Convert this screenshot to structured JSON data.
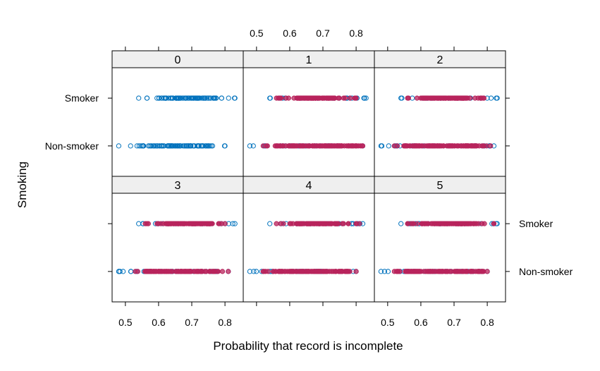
{
  "chart_data": {
    "type": "scatter",
    "xlabel": "Probability that record is incomplete",
    "ylabel": "Smoking",
    "xlim": [
      0.46,
      0.855
    ],
    "x_ticks": [
      0.5,
      0.6,
      0.7,
      0.8
    ],
    "x_tick_labels": [
      "0.5",
      "0.6",
      "0.7",
      "0.8"
    ],
    "y_categories": [
      "Non-smoker",
      "Smoker"
    ],
    "colors": {
      "open": "#0072bd",
      "filled": "#b8245c",
      "strip": "#efefef"
    },
    "legend": null,
    "panels": [
      {
        "label": "0",
        "ranges": {
          "Smoker": {
            "open": [
              0.54,
              0.83
            ],
            "open_dense": [
              0.6,
              0.77
            ],
            "filled": null
          },
          "Non-smoker": {
            "open": [
              0.48,
              0.8
            ],
            "open_dense": [
              0.55,
              0.76
            ],
            "filled": null
          }
        }
      },
      {
        "label": "1",
        "ranges": {
          "Smoker": {
            "open": [
              0.54,
              0.83
            ],
            "filled": [
              0.56,
              0.8
            ],
            "filled_dense": [
              0.62,
              0.74
            ]
          },
          "Non-smoker": {
            "open": [
              0.48,
              0.82
            ],
            "filled": [
              0.52,
              0.82
            ],
            "filled_dense": [
              0.55,
              0.8
            ]
          }
        }
      },
      {
        "label": "2",
        "ranges": {
          "Smoker": {
            "open": [
              0.54,
              0.83
            ],
            "filled": [
              0.56,
              0.79
            ],
            "filled_dense": [
              0.6,
              0.74
            ]
          },
          "Non-smoker": {
            "open": [
              0.48,
              0.82
            ],
            "filled": [
              0.52,
              0.81
            ],
            "filled_dense": [
              0.55,
              0.79
            ]
          }
        }
      },
      {
        "label": "3",
        "ranges": {
          "Smoker": {
            "open": [
              0.54,
              0.83
            ],
            "filled": [
              0.56,
              0.8
            ],
            "filled_dense": [
              0.62,
              0.76
            ]
          },
          "Non-smoker": {
            "open": [
              0.48,
              0.81
            ],
            "filled": [
              0.53,
              0.81
            ],
            "filled_dense": [
              0.56,
              0.79
            ]
          }
        }
      },
      {
        "label": "4",
        "ranges": {
          "Smoker": {
            "open": [
              0.54,
              0.82
            ],
            "filled": [
              0.56,
              0.81
            ],
            "filled_dense": [
              0.62,
              0.75
            ]
          },
          "Non-smoker": {
            "open": [
              0.48,
              0.8
            ],
            "filled": [
              0.52,
              0.8
            ],
            "filled_dense": [
              0.55,
              0.79
            ]
          }
        }
      },
      {
        "label": "5",
        "ranges": {
          "Smoker": {
            "open": [
              0.54,
              0.83
            ],
            "filled": [
              0.56,
              0.82
            ],
            "filled_dense": [
              0.6,
              0.76
            ]
          },
          "Non-smoker": {
            "open": [
              0.48,
              0.8
            ],
            "filled": [
              0.52,
              0.8
            ],
            "filled_dense": [
              0.55,
              0.79
            ]
          }
        }
      }
    ]
  }
}
